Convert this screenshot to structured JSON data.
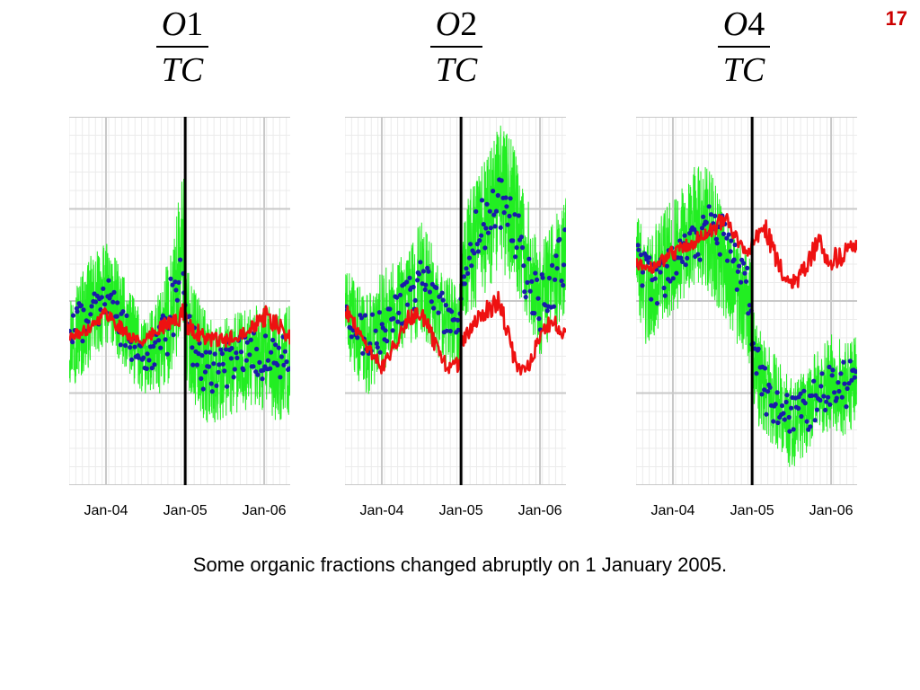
{
  "slide_number": "17",
  "caption": "Some organic fractions changed abruptly on 1 January 2005.",
  "colors": {
    "daily_series": "#22ee22",
    "points_series": "#1a1aaa",
    "smoothed_series": "#ee1111",
    "event_line": "#000000",
    "grid": "#c8c8c8"
  },
  "chart_data": [
    {
      "type": "line",
      "title": {
        "numerator_var": "O",
        "numerator_num": "1",
        "denominator": "TC"
      },
      "x_tick_labels": [
        "Jan-04",
        "Jan-05",
        "Jan-06"
      ],
      "x_ticks": [
        "2004-01-01",
        "2005-01-01",
        "2006-01-01"
      ],
      "xlim": [
        "2003-07-15",
        "2006-05-01"
      ],
      "event_date": "2005-01-01",
      "ylim": [
        0,
        1
      ],
      "grid": true,
      "series": [
        {
          "style": "noisy-band",
          "x": [
            "2003-07-15",
            "2003-09-01",
            "2003-11-01",
            "2004-01-01",
            "2004-03-01",
            "2004-05-01",
            "2004-07-01",
            "2004-09-01",
            "2004-11-01",
            "2004-12-31",
            "2005-01-01",
            "2005-03-01",
            "2005-05-01",
            "2005-07-01",
            "2005-09-01",
            "2005-11-01",
            "2006-01-01",
            "2006-03-01",
            "2006-05-01"
          ],
          "y": [
            0.4,
            0.43,
            0.48,
            0.52,
            0.47,
            0.4,
            0.34,
            0.38,
            0.47,
            0.65,
            0.44,
            0.36,
            0.3,
            0.31,
            0.33,
            0.35,
            0.34,
            0.32,
            0.34
          ],
          "spread": [
            0.13,
            0.15,
            0.15,
            0.14,
            0.13,
            0.12,
            0.11,
            0.14,
            0.18,
            0.26,
            0.16,
            0.16,
            0.15,
            0.14,
            0.14,
            0.14,
            0.15,
            0.16,
            0.15
          ]
        },
        {
          "style": "dots",
          "x": [
            "2003-07-15",
            "2003-10-01",
            "2004-01-01",
            "2004-03-01",
            "2004-05-01",
            "2004-07-01",
            "2004-09-01",
            "2004-11-01",
            "2004-12-31",
            "2005-01-01",
            "2005-03-01",
            "2005-05-01",
            "2005-07-01",
            "2005-09-01",
            "2005-11-01",
            "2006-01-01",
            "2006-03-01",
            "2006-05-01"
          ],
          "y": [
            0.39,
            0.46,
            0.51,
            0.45,
            0.38,
            0.32,
            0.36,
            0.48,
            0.6,
            0.43,
            0.34,
            0.3,
            0.32,
            0.34,
            0.36,
            0.35,
            0.33,
            0.35
          ],
          "spread": [
            0.04,
            0.04,
            0.04,
            0.04,
            0.04,
            0.03,
            0.04,
            0.06,
            0.08,
            0.04,
            0.04,
            0.04,
            0.04,
            0.04,
            0.04,
            0.04,
            0.04,
            0.04
          ],
          "count": 170
        },
        {
          "style": "smooth-line",
          "x": [
            "2003-07-15",
            "2003-10-01",
            "2004-01-01",
            "2004-03-01",
            "2004-05-01",
            "2004-07-01",
            "2004-09-01",
            "2004-11-01",
            "2004-12-31",
            "2005-01-01",
            "2005-04-01",
            "2005-07-01",
            "2005-10-01",
            "2006-01-01",
            "2006-03-01",
            "2006-05-01"
          ],
          "y": [
            0.4,
            0.42,
            0.47,
            0.43,
            0.4,
            0.39,
            0.43,
            0.44,
            0.47,
            0.44,
            0.4,
            0.39,
            0.42,
            0.46,
            0.43,
            0.4
          ],
          "spread": [
            0.015,
            0.015,
            0.02,
            0.02,
            0.015,
            0.015,
            0.02,
            0.025,
            0.03,
            0.03,
            0.02,
            0.02,
            0.02,
            0.03,
            0.03,
            0.02
          ]
        }
      ]
    },
    {
      "type": "line",
      "title": {
        "numerator_var": "O",
        "numerator_num": "2",
        "denominator": "TC"
      },
      "x_tick_labels": [
        "Jan-04",
        "Jan-05",
        "Jan-06"
      ],
      "x_ticks": [
        "2004-01-01",
        "2005-01-01",
        "2006-01-01"
      ],
      "xlim": [
        "2003-07-15",
        "2006-05-01"
      ],
      "event_date": "2005-01-01",
      "ylim": [
        0,
        1
      ],
      "grid": true,
      "series": [
        {
          "style": "noisy-band",
          "x": [
            "2003-07-15",
            "2003-09-01",
            "2003-11-01",
            "2004-01-01",
            "2004-03-01",
            "2004-05-01",
            "2004-07-01",
            "2004-09-01",
            "2004-11-01",
            "2004-12-31",
            "2005-01-01",
            "2005-03-01",
            "2005-05-01",
            "2005-07-01",
            "2005-09-01",
            "2005-11-01",
            "2006-01-01",
            "2006-03-01",
            "2006-05-01"
          ],
          "y": [
            0.48,
            0.42,
            0.38,
            0.44,
            0.49,
            0.51,
            0.56,
            0.5,
            0.44,
            0.43,
            0.6,
            0.65,
            0.72,
            0.78,
            0.74,
            0.62,
            0.5,
            0.56,
            0.62
          ],
          "spread": [
            0.12,
            0.13,
            0.14,
            0.14,
            0.13,
            0.13,
            0.16,
            0.14,
            0.13,
            0.12,
            0.16,
            0.18,
            0.19,
            0.2,
            0.19,
            0.17,
            0.15,
            0.16,
            0.16
          ]
        },
        {
          "style": "dots",
          "x": [
            "2003-07-15",
            "2003-10-01",
            "2004-01-01",
            "2004-03-01",
            "2004-05-01",
            "2004-07-01",
            "2004-09-01",
            "2004-11-01",
            "2004-12-31",
            "2005-01-01",
            "2005-03-01",
            "2005-05-01",
            "2005-07-01",
            "2005-09-01",
            "2005-11-01",
            "2006-01-01",
            "2006-03-01",
            "2006-05-01"
          ],
          "y": [
            0.47,
            0.4,
            0.41,
            0.48,
            0.51,
            0.56,
            0.5,
            0.45,
            0.43,
            0.58,
            0.66,
            0.73,
            0.77,
            0.7,
            0.58,
            0.5,
            0.56,
            0.62
          ],
          "spread": [
            0.04,
            0.04,
            0.04,
            0.04,
            0.04,
            0.04,
            0.04,
            0.04,
            0.04,
            0.05,
            0.05,
            0.05,
            0.05,
            0.05,
            0.05,
            0.05,
            0.05,
            0.05
          ],
          "count": 170
        },
        {
          "style": "smooth-line",
          "x": [
            "2003-07-15",
            "2003-10-01",
            "2004-01-01",
            "2004-03-01",
            "2004-05-01",
            "2004-07-01",
            "2004-09-01",
            "2004-11-01",
            "2004-12-31",
            "2005-01-01",
            "2005-03-01",
            "2005-05-01",
            "2005-07-01",
            "2005-08-15",
            "2005-10-01",
            "2005-11-15",
            "2006-01-01",
            "2006-03-01",
            "2006-05-01"
          ],
          "y": [
            0.48,
            0.4,
            0.32,
            0.38,
            0.46,
            0.47,
            0.38,
            0.32,
            0.33,
            0.39,
            0.43,
            0.48,
            0.5,
            0.38,
            0.31,
            0.33,
            0.41,
            0.44,
            0.41
          ],
          "spread": [
            0.02,
            0.02,
            0.02,
            0.02,
            0.025,
            0.03,
            0.03,
            0.02,
            0.02,
            0.02,
            0.025,
            0.03,
            0.03,
            0.03,
            0.02,
            0.02,
            0.025,
            0.025,
            0.02
          ]
        }
      ]
    },
    {
      "type": "line",
      "title": {
        "numerator_var": "O",
        "numerator_num": "4",
        "denominator": "TC"
      },
      "x_tick_labels": [
        "Jan-04",
        "Jan-05",
        "Jan-06"
      ],
      "x_ticks": [
        "2004-01-01",
        "2005-01-01",
        "2006-01-01"
      ],
      "xlim": [
        "2003-07-15",
        "2006-05-01"
      ],
      "event_date": "2005-01-01",
      "ylim": [
        0,
        1
      ],
      "grid": true,
      "series": [
        {
          "style": "noisy-band",
          "x": [
            "2003-07-15",
            "2003-09-01",
            "2003-11-01",
            "2004-01-01",
            "2004-03-01",
            "2004-05-01",
            "2004-07-01",
            "2004-09-01",
            "2004-11-01",
            "2004-12-31",
            "2005-01-01",
            "2005-03-01",
            "2005-05-01",
            "2005-07-01",
            "2005-09-01",
            "2005-11-01",
            "2006-01-01",
            "2006-03-01",
            "2006-05-01"
          ],
          "y": [
            0.62,
            0.52,
            0.58,
            0.62,
            0.67,
            0.72,
            0.68,
            0.6,
            0.52,
            0.46,
            0.34,
            0.26,
            0.22,
            0.17,
            0.2,
            0.25,
            0.28,
            0.26,
            0.28
          ],
          "spread": [
            0.14,
            0.15,
            0.15,
            0.16,
            0.16,
            0.17,
            0.17,
            0.16,
            0.15,
            0.15,
            0.14,
            0.14,
            0.13,
            0.13,
            0.12,
            0.12,
            0.13,
            0.13,
            0.13
          ]
        },
        {
          "style": "dots",
          "x": [
            "2003-07-15",
            "2003-10-01",
            "2004-01-01",
            "2004-03-01",
            "2004-05-01",
            "2004-07-01",
            "2004-09-01",
            "2004-11-01",
            "2004-12-31",
            "2005-01-01",
            "2005-03-01",
            "2005-05-01",
            "2005-07-01",
            "2005-09-01",
            "2005-11-01",
            "2006-01-01",
            "2006-03-01",
            "2006-05-01"
          ],
          "y": [
            0.62,
            0.54,
            0.6,
            0.63,
            0.67,
            0.72,
            0.66,
            0.58,
            0.5,
            0.36,
            0.26,
            0.22,
            0.18,
            0.2,
            0.24,
            0.27,
            0.27,
            0.28
          ],
          "spread": [
            0.04,
            0.04,
            0.04,
            0.04,
            0.04,
            0.04,
            0.04,
            0.04,
            0.05,
            0.04,
            0.04,
            0.04,
            0.04,
            0.04,
            0.04,
            0.04,
            0.04,
            0.04
          ],
          "count": 170
        },
        {
          "style": "smooth-line",
          "x": [
            "2003-07-15",
            "2003-10-01",
            "2004-01-01",
            "2004-03-01",
            "2004-05-01",
            "2004-07-01",
            "2004-09-01",
            "2004-11-01",
            "2004-12-31",
            "2005-01-01",
            "2005-03-01",
            "2005-05-01",
            "2005-07-01",
            "2005-09-01",
            "2005-11-01",
            "2006-01-01",
            "2006-03-01",
            "2006-05-01"
          ],
          "y": [
            0.6,
            0.59,
            0.63,
            0.65,
            0.67,
            0.7,
            0.72,
            0.66,
            0.63,
            0.65,
            0.7,
            0.6,
            0.55,
            0.58,
            0.66,
            0.61,
            0.63,
            0.66
          ],
          "spread": [
            0.015,
            0.015,
            0.02,
            0.02,
            0.02,
            0.025,
            0.025,
            0.02,
            0.02,
            0.025,
            0.03,
            0.03,
            0.03,
            0.03,
            0.03,
            0.03,
            0.03,
            0.03
          ]
        }
      ]
    }
  ]
}
